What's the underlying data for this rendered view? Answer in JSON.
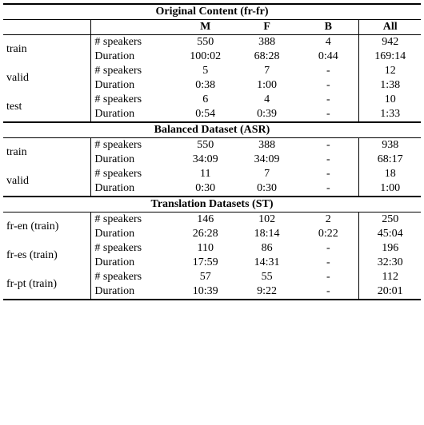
{
  "sections": {
    "s1": {
      "title": "Original Content (fr-fr)",
      "cols": [
        "M",
        "F",
        "B",
        "All"
      ],
      "rows": {
        "train": {
          "label": "train",
          "speakers": [
            "550",
            "388",
            "4",
            "942"
          ],
          "duration": [
            "100:02",
            "68:28",
            "0:44",
            "169:14"
          ]
        },
        "valid": {
          "label": "valid",
          "speakers": [
            "5",
            "7",
            "-",
            "12"
          ],
          "duration": [
            "0:38",
            "1:00",
            "-",
            "1:38"
          ]
        },
        "test": {
          "label": "test",
          "speakers": [
            "6",
            "4",
            "-",
            "10"
          ],
          "duration": [
            "0:54",
            "0:39",
            "-",
            "1:33"
          ]
        }
      }
    },
    "s2": {
      "title": "Balanced Dataset (ASR)",
      "rows": {
        "train": {
          "label": "train",
          "speakers": [
            "550",
            "388",
            "-",
            "938"
          ],
          "duration": [
            "34:09",
            "34:09",
            "-",
            "68:17"
          ]
        },
        "valid": {
          "label": "valid",
          "speakers": [
            "11",
            "7",
            "-",
            "18"
          ],
          "duration": [
            "0:30",
            "0:30",
            "-",
            "1:00"
          ]
        }
      }
    },
    "s3": {
      "title": "Translation Datasets (ST)",
      "rows": {
        "fren": {
          "label": "fr-en (train)",
          "speakers": [
            "146",
            "102",
            "2",
            "250"
          ],
          "duration": [
            "26:28",
            "18:14",
            "0:22",
            "45:04"
          ]
        },
        "fres": {
          "label": "fr-es (train)",
          "speakers": [
            "110",
            "86",
            "-",
            "196"
          ],
          "duration": [
            "17:59",
            "14:31",
            "-",
            "32:30"
          ]
        },
        "frpt": {
          "label": "fr-pt (train)",
          "speakers": [
            "57",
            "55",
            "-",
            "112"
          ],
          "duration": [
            "10:39",
            "9:22",
            "-",
            "20:01"
          ]
        }
      }
    }
  },
  "row_labels": {
    "speakers": "# speakers",
    "duration": "Duration"
  }
}
